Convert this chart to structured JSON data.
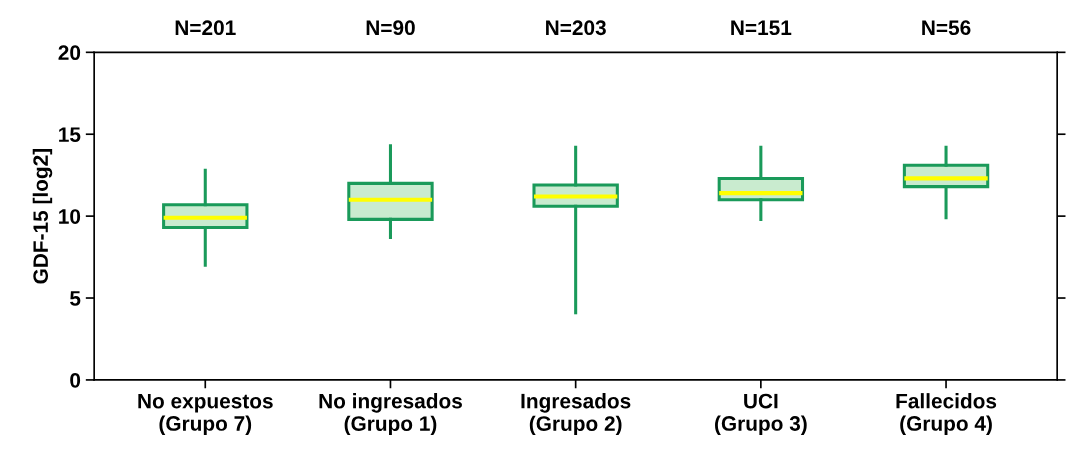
{
  "chart_data": {
    "type": "box",
    "ylabel": "GDF-15 [log2]",
    "categories": [
      "No expuestos\n(Grupo 7)",
      "No ingresados\n(Grupo 1)",
      "Ingresados\n(Grupo 2)",
      "UCI\n(Grupo 3)",
      "Fallecidos\n(Grupo 4)"
    ],
    "annotations": [
      "N=201",
      "N=90",
      "N=203",
      "N=151",
      "N=56"
    ],
    "series": [
      {
        "color": "#1a9a5a",
        "boxes": [
          {
            "low": 7.0,
            "q1": 9.3,
            "median": 9.9,
            "q3": 10.7,
            "high": 12.8
          },
          {
            "low": 8.7,
            "q1": 9.8,
            "median": 11.0,
            "q3": 12.0,
            "high": 14.3
          },
          {
            "low": 4.1,
            "q1": 10.6,
            "median": 11.2,
            "q3": 11.9,
            "high": 14.2
          },
          {
            "low": 9.8,
            "q1": 11.0,
            "median": 11.4,
            "q3": 12.3,
            "high": 14.2
          },
          {
            "low": 9.9,
            "q1": 11.8,
            "median": 12.3,
            "q3": 13.1,
            "high": 14.2
          }
        ]
      }
    ],
    "ylim": [
      0,
      20
    ],
    "yticks": [
      0,
      5,
      10,
      15,
      20
    ],
    "grid": false,
    "legend": false
  }
}
